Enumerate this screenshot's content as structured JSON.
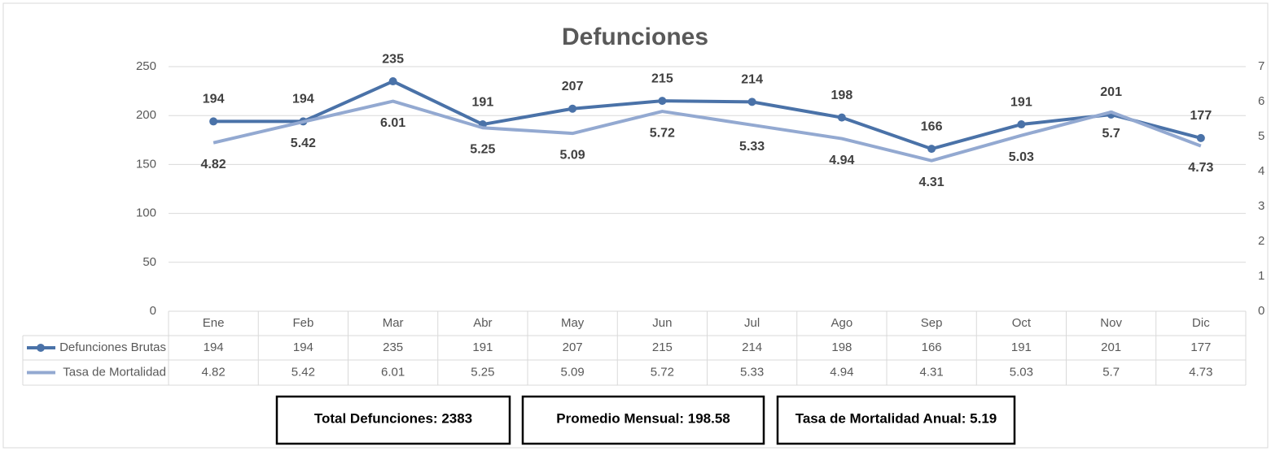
{
  "chart_data": {
    "type": "line",
    "title": "Defunciones",
    "categories": [
      "Ene",
      "Feb",
      "Mar",
      "Abr",
      "May",
      "Jun",
      "Jul",
      "Ago",
      "Sep",
      "Oct",
      "Nov",
      "Dic"
    ],
    "series": [
      {
        "name": "Defunciones Brutas",
        "color": "#4a72a8",
        "values": [
          194,
          194,
          235,
          191,
          207,
          215,
          214,
          198,
          166,
          191,
          201,
          177
        ]
      },
      {
        "name": "Tasa de Mortalidad",
        "color": "#93a9d1",
        "axis": "y2",
        "values": [
          4.82,
          5.42,
          6.01,
          5.25,
          5.09,
          5.72,
          5.33,
          4.94,
          4.31,
          5.03,
          5.7,
          4.73
        ]
      }
    ],
    "ylim": [
      0,
      250
    ],
    "yticks": [
      0,
      50,
      100,
      150,
      200,
      250
    ],
    "y2lim": [
      0,
      7
    ],
    "y2ticks": [
      0,
      1,
      2,
      3,
      4,
      5,
      6,
      7
    ],
    "grid": true,
    "summary": [
      "Total Defunciones: 2383",
      "Promedio Mensual: 198.58",
      "Tasa de Mortalidad Anual: 5.19"
    ]
  }
}
